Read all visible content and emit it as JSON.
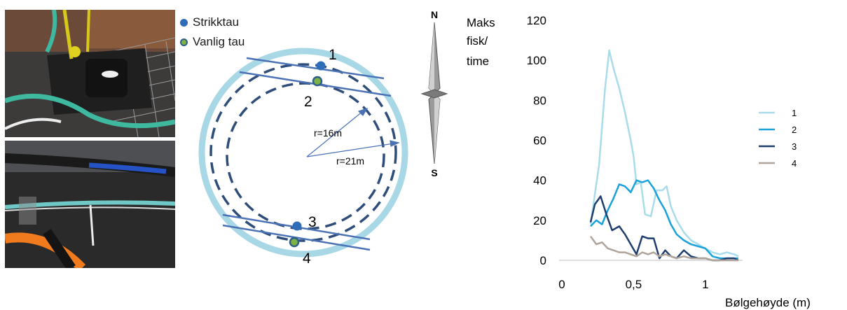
{
  "photos": {
    "top": {
      "description": "photo-winch-equipment"
    },
    "bottom": {
      "description": "photo-ropes-on-net"
    }
  },
  "legend": {
    "items": [
      {
        "label": "Strikktau",
        "color": "#2e6db8",
        "ring": "#2e6db8"
      },
      {
        "label": "Vanlig tau",
        "color": "#7cb342",
        "ring": "#2e5f8a"
      }
    ]
  },
  "diagram": {
    "cage_color": "#a8d8e6",
    "ring_color": "#2e4d7a",
    "rope_color": "#4a72b5",
    "position_labels": [
      "1",
      "2",
      "3",
      "4"
    ],
    "radius_labels": [
      "r=16m",
      "r=21m"
    ]
  },
  "compass": {
    "north": "N",
    "south": "S"
  },
  "chart_data": {
    "type": "line",
    "ylabel": "Maks fisk/ time",
    "ylabel_lines": [
      "Maks",
      "fisk/",
      "time"
    ],
    "xlabel": "Bølgehøyde (m)",
    "xlim": [
      0,
      1.25
    ],
    "ylim": [
      0,
      120
    ],
    "xticks": [
      0,
      0.5,
      1
    ],
    "xtick_labels": [
      "0",
      "0,5",
      "1"
    ],
    "yticks": [
      0,
      20,
      40,
      60,
      80,
      100,
      120
    ],
    "grid": false,
    "legend_position": "right",
    "series": [
      {
        "name": "1",
        "color": "#a9dceb",
        "x": [
          0.2,
          0.23,
          0.26,
          0.3,
          0.33,
          0.36,
          0.4,
          0.44,
          0.48,
          0.5,
          0.52,
          0.55,
          0.58,
          0.62,
          0.66,
          0.7,
          0.73,
          0.76,
          0.8,
          0.85,
          0.9,
          0.95,
          1.0,
          1.05,
          1.1,
          1.15,
          1.2,
          1.23
        ],
        "y": [
          18,
          33,
          48,
          85,
          105,
          96,
          86,
          74,
          60,
          52,
          38,
          39,
          23,
          22,
          35,
          35,
          37,
          27,
          20,
          14,
          10,
          8,
          6,
          4,
          3,
          4,
          3,
          2
        ]
      },
      {
        "name": "2",
        "color": "#1ba2db",
        "x": [
          0.2,
          0.24,
          0.28,
          0.32,
          0.36,
          0.4,
          0.44,
          0.48,
          0.52,
          0.56,
          0.6,
          0.64,
          0.68,
          0.72,
          0.76,
          0.8,
          0.85,
          0.9,
          0.95,
          1.0,
          1.05,
          1.1,
          1.15,
          1.2,
          1.23
        ],
        "y": [
          17,
          20,
          18,
          25,
          31,
          38,
          37,
          34,
          40,
          39,
          40,
          36,
          30,
          25,
          18,
          13,
          10,
          8,
          7,
          6,
          2,
          1,
          1,
          1,
          1
        ]
      },
      {
        "name": "3",
        "color": "#1f3e6e",
        "x": [
          0.2,
          0.23,
          0.27,
          0.31,
          0.35,
          0.4,
          0.44,
          0.48,
          0.52,
          0.56,
          0.6,
          0.64,
          0.68,
          0.72,
          0.76,
          0.8,
          0.85,
          0.9,
          0.95,
          1.0,
          1.05,
          1.1,
          1.15,
          1.2,
          1.23
        ],
        "y": [
          19,
          28,
          32,
          23,
          15,
          17,
          13,
          8,
          3,
          12,
          11,
          11,
          1,
          5,
          2,
          1,
          5,
          2,
          1,
          1,
          0,
          0,
          1,
          1,
          0
        ]
      },
      {
        "name": "4",
        "color": "#b0a49a",
        "x": [
          0.2,
          0.24,
          0.28,
          0.32,
          0.36,
          0.4,
          0.44,
          0.48,
          0.52,
          0.56,
          0.6,
          0.64,
          0.68,
          0.72,
          0.76,
          0.8,
          0.85,
          0.9,
          0.95,
          1.0,
          1.05,
          1.1,
          1.15,
          1.2,
          1.23
        ],
        "y": [
          12,
          8,
          9,
          6,
          5,
          4,
          4,
          3,
          2,
          4,
          3,
          4,
          2,
          3,
          2,
          1,
          2,
          1,
          1,
          1,
          0,
          0,
          0,
          0,
          0
        ]
      }
    ]
  }
}
